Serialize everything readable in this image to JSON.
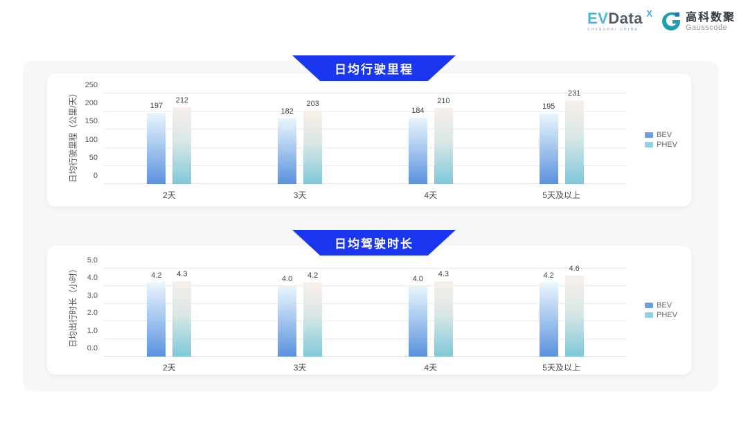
{
  "logo": {
    "evdata": {
      "part1": "EV",
      "part2": "Data",
      "sup": "X",
      "sub1": "SHANGHAI",
      "sub2": "CHINA"
    },
    "gausscode": {
      "cn": "高科数聚",
      "en": "Gausscode"
    }
  },
  "legend": {
    "items": [
      {
        "label": "BEV",
        "color": "#6f9ede"
      },
      {
        "label": "PHEV",
        "color": "#8fd2e2"
      }
    ]
  },
  "colors": {
    "banner_blue": "#1b36f0",
    "bev_gradient_top": "#eaf6fd",
    "bev_gradient_bottom": "#5a92de",
    "phev_gradient_top": "#f9efe9",
    "phev_gradient_mid": "#d8e7e6",
    "phev_gradient_bottom": "#7fc8d9",
    "gauss_teal": "#1e9fb0",
    "gauss_blue": "#2a6fb0"
  },
  "chart_data": [
    {
      "type": "bar",
      "title": "日均行驶里程",
      "ylabel": "日均行驶里程（公里/天）",
      "categories": [
        "2天",
        "3天",
        "4天",
        "5天及以上"
      ],
      "series": [
        {
          "name": "BEV",
          "values": [
            197,
            182,
            184,
            195
          ],
          "labels": [
            "197",
            "182",
            "184",
            "195"
          ]
        },
        {
          "name": "PHEV",
          "values": [
            212,
            203,
            210,
            231
          ],
          "labels": [
            "212",
            "203",
            "210",
            "231"
          ]
        }
      ],
      "ylim": [
        0,
        250
      ],
      "yticks": [
        0,
        50,
        100,
        150,
        200,
        250
      ],
      "ytick_labels": [
        "0",
        "50",
        "100",
        "150",
        "200",
        "250"
      ],
      "grid": true,
      "legend_position": "right"
    },
    {
      "type": "bar",
      "title": "日均驾驶时长",
      "ylabel": "日均出行时长（小时）",
      "categories": [
        "2天",
        "3天",
        "4天",
        "5天及以上"
      ],
      "series": [
        {
          "name": "BEV",
          "values": [
            4.2,
            4.0,
            4.0,
            4.2
          ],
          "labels": [
            "4.2",
            "4.0",
            "4.0",
            "4.2"
          ]
        },
        {
          "name": "PHEV",
          "values": [
            4.3,
            4.2,
            4.3,
            4.6
          ],
          "labels": [
            "4.3",
            "4.2",
            "4.3",
            "4.6"
          ]
        }
      ],
      "ylim": [
        0,
        5
      ],
      "yticks": [
        0.0,
        1.0,
        2.0,
        3.0,
        4.0,
        5.0
      ],
      "ytick_labels": [
        "0.0",
        "1.0",
        "2.0",
        "3.0",
        "4.0",
        "5.0"
      ],
      "grid": true,
      "legend_position": "right"
    }
  ]
}
